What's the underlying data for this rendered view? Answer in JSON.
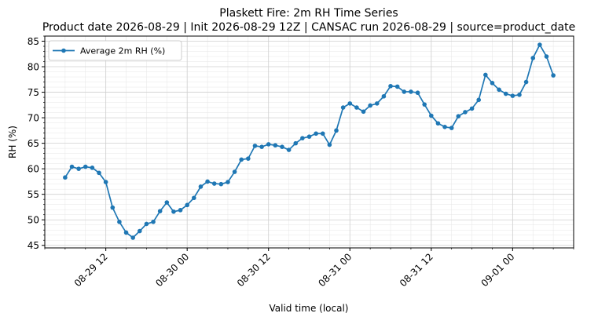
{
  "chart_data": {
    "type": "line",
    "title": "Plaskett Fire: 2m RH Time Series",
    "subtitle": "Product date 2026-08-29 | Init 2026-08-29 12Z | CANSAC run 2026-08-29 | source=product_date",
    "xlabel": "Valid time (local)",
    "ylabel": "RH (%)",
    "x_ticks": [
      "08-29 12",
      "08-30 00",
      "08-30 12",
      "08-31 00",
      "08-31 12",
      "09-01 00"
    ],
    "y_ticks": [
      "45",
      "50",
      "55",
      "60",
      "65",
      "70",
      "75",
      "80",
      "85"
    ],
    "ylim": [
      44.5,
      86.0
    ],
    "xlim": [
      "2026-08-29 03:00",
      "2026-09-01 09:00"
    ],
    "grid": true,
    "legend": "top-left",
    "series": [
      {
        "name": "Average 2m RH (%)",
        "color": "#1f77b4",
        "x": [
          "2026-08-29 06:00",
          "2026-08-29 07:00",
          "2026-08-29 08:00",
          "2026-08-29 09:00",
          "2026-08-29 10:00",
          "2026-08-29 11:00",
          "2026-08-29 12:00",
          "2026-08-29 13:00",
          "2026-08-29 14:00",
          "2026-08-29 15:00",
          "2026-08-29 16:00",
          "2026-08-29 17:00",
          "2026-08-29 18:00",
          "2026-08-29 19:00",
          "2026-08-29 20:00",
          "2026-08-29 21:00",
          "2026-08-29 22:00",
          "2026-08-29 23:00",
          "2026-08-30 00:00",
          "2026-08-30 01:00",
          "2026-08-30 02:00",
          "2026-08-30 03:00",
          "2026-08-30 04:00",
          "2026-08-30 05:00",
          "2026-08-30 06:00",
          "2026-08-30 07:00",
          "2026-08-30 08:00",
          "2026-08-30 09:00",
          "2026-08-30 10:00",
          "2026-08-30 11:00",
          "2026-08-30 12:00",
          "2026-08-30 13:00",
          "2026-08-30 14:00",
          "2026-08-30 15:00",
          "2026-08-30 16:00",
          "2026-08-30 17:00",
          "2026-08-30 18:00",
          "2026-08-30 19:00",
          "2026-08-30 20:00",
          "2026-08-30 21:00",
          "2026-08-30 22:00",
          "2026-08-30 23:00",
          "2026-08-31 00:00",
          "2026-08-31 01:00",
          "2026-08-31 02:00",
          "2026-08-31 03:00",
          "2026-08-31 04:00",
          "2026-08-31 05:00",
          "2026-08-31 06:00",
          "2026-08-31 07:00",
          "2026-08-31 08:00",
          "2026-08-31 09:00",
          "2026-08-31 10:00",
          "2026-08-31 11:00",
          "2026-08-31 12:00",
          "2026-08-31 13:00",
          "2026-08-31 14:00",
          "2026-08-31 15:00",
          "2026-08-31 16:00",
          "2026-08-31 17:00",
          "2026-08-31 18:00",
          "2026-08-31 19:00",
          "2026-08-31 20:00",
          "2026-08-31 21:00",
          "2026-08-31 22:00",
          "2026-08-31 23:00",
          "2026-09-01 00:00",
          "2026-09-01 01:00",
          "2026-09-01 02:00",
          "2026-09-01 03:00",
          "2026-09-01 04:00",
          "2026-09-01 05:00",
          "2026-09-01 06:00"
        ],
        "values": [
          58.3,
          60.4,
          60.0,
          60.4,
          60.2,
          59.2,
          57.4,
          52.4,
          49.6,
          47.5,
          46.5,
          47.8,
          49.2,
          49.6,
          51.7,
          53.4,
          51.6,
          51.9,
          52.9,
          54.3,
          56.5,
          57.5,
          57.1,
          57.0,
          57.4,
          59.4,
          61.8,
          62.0,
          64.5,
          64.3,
          64.8,
          64.6,
          64.3,
          63.7,
          65.0,
          66.0,
          66.3,
          66.9,
          66.9,
          64.7,
          67.5,
          72.0,
          72.8,
          72.0,
          71.2,
          72.4,
          72.8,
          74.2,
          76.2,
          76.1,
          75.1,
          75.1,
          74.9,
          72.6,
          70.4,
          68.9,
          68.2,
          68.0,
          70.3,
          71.1,
          71.8,
          73.5,
          78.4,
          76.8,
          75.5,
          74.7,
          74.3,
          74.5,
          77.0,
          81.7,
          84.3,
          82.0,
          78.3
        ]
      }
    ]
  }
}
